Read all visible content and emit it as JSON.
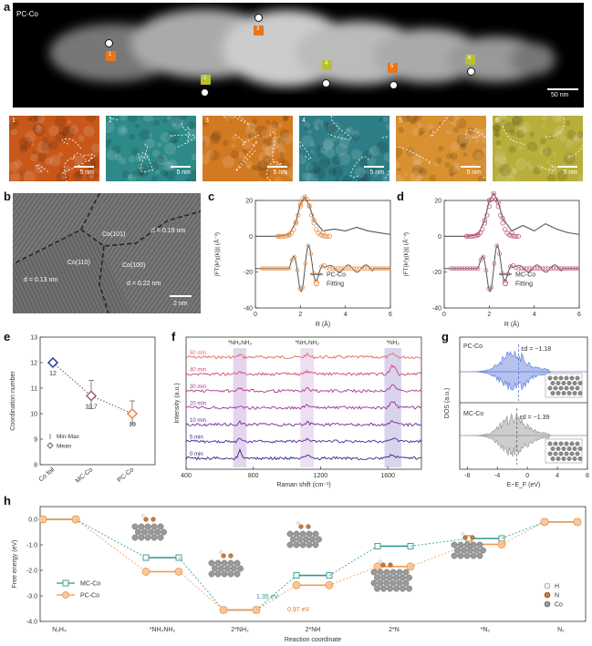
{
  "panels": {
    "a": {
      "letter": "a",
      "sample": "PC-Co",
      "scale_bar": "50 nm",
      "markers": [
        "1",
        "2",
        "3",
        "4",
        "5",
        "6"
      ],
      "tiles": [
        {
          "n": "1",
          "scale": "5 nm",
          "color": "#c8581a"
        },
        {
          "n": "2",
          "scale": "5 nm",
          "color": "#2e8a88"
        },
        {
          "n": "3",
          "scale": "5 nm",
          "color": "#d27a22"
        },
        {
          "n": "4",
          "scale": "5 nm",
          "color": "#2d7e86"
        },
        {
          "n": "5",
          "scale": "5 nm",
          "color": "#d89030"
        },
        {
          "n": "6",
          "scale": "5 nm",
          "color": "#b8ae3a"
        }
      ]
    },
    "b": {
      "letter": "b",
      "labels": [
        "Co(101)",
        "d = 0.19 nm",
        "Co(110)",
        "Co(100)",
        "d = 0.13 nm",
        "d = 0.22 nm"
      ],
      "scale_bar": "2 nm"
    },
    "c": {
      "letter": "c"
    },
    "d": {
      "letter": "d"
    },
    "e": {
      "letter": "e",
      "legend": [
        "Min-Max",
        "Mean"
      ]
    },
    "f": {
      "letter": "f",
      "peaks": [
        "*NH₂NH₂",
        "*NH₂NH₂",
        "*NH₂"
      ],
      "times": [
        "50 min",
        "40 min",
        "30 min",
        "20 min",
        "10 min",
        "5 min",
        "0 min"
      ]
    },
    "g": {
      "letter": "g",
      "samples": [
        "PC-Co",
        "MC-Co"
      ],
      "eps": [
        "εd = −1.18",
        "εd = −1.39"
      ]
    },
    "h": {
      "letter": "h",
      "legend": [
        "MC-Co",
        "PC-Co"
      ],
      "energy_labels": [
        "1.35 eV",
        "0.97 eV"
      ],
      "atoms": [
        "H",
        "N",
        "Co"
      ]
    }
  },
  "chart_data": [
    {
      "type": "line",
      "panel": "c",
      "xlabel": "R (Å)",
      "ylabel": "|FT(k²χ(k))| (Å⁻³)",
      "xlim": [
        0,
        6
      ],
      "ylim": [
        -40,
        20
      ],
      "xticks": [
        0,
        2,
        4,
        6
      ],
      "yticks": [
        20,
        0,
        -20,
        -40
      ],
      "series": [
        {
          "name": "PC-Co",
          "x": [
            0,
            0.5,
            1.0,
            1.5,
            1.8,
            2.0,
            2.2,
            2.4,
            2.6,
            3.0,
            3.5,
            4.0,
            4.5,
            5.0,
            5.5,
            6.0
          ],
          "values": [
            0,
            0,
            0,
            1,
            8,
            18,
            22,
            17,
            9,
            3,
            4,
            3,
            5,
            3,
            2,
            1
          ]
        },
        {
          "name": "Fitting",
          "x": [
            0,
            0.5,
            1.0,
            1.5,
            1.8,
            2.0,
            2.2,
            2.4,
            2.6,
            3.0,
            3.5,
            4.0,
            4.5,
            5.0,
            5.5,
            6.0
          ],
          "values": [
            0,
            0,
            0,
            1,
            8,
            18,
            22,
            17,
            9,
            2,
            1,
            0,
            0,
            0,
            0,
            0
          ]
        }
      ]
    },
    {
      "type": "line",
      "panel": "d",
      "xlabel": "R (Å)",
      "ylabel": "|FT(k²χ(k))| (Å⁻³)",
      "xlim": [
        0,
        6
      ],
      "ylim": [
        -40,
        20
      ],
      "xticks": [
        0,
        2,
        4,
        6
      ],
      "yticks": [
        20,
        0,
        -20,
        -40
      ],
      "series": [
        {
          "name": "MC-Co",
          "x": [
            0,
            0.5,
            1.0,
            1.5,
            1.8,
            2.0,
            2.2,
            2.4,
            2.6,
            3.0,
            3.5,
            4.0,
            4.5,
            5.0,
            5.5,
            6.0
          ],
          "values": [
            0,
            0,
            0,
            1,
            9,
            20,
            24,
            19,
            10,
            3,
            6,
            3,
            7,
            4,
            2,
            1
          ]
        },
        {
          "name": "Fitting",
          "x": [
            0,
            0.5,
            1.0,
            1.5,
            1.8,
            2.0,
            2.2,
            2.4,
            2.6,
            3.0,
            3.5,
            4.0,
            4.5,
            5.0,
            5.5,
            6.0
          ],
          "values": [
            0,
            0,
            0,
            1,
            9,
            20,
            24,
            19,
            10,
            2,
            1,
            0,
            0,
            0,
            0,
            0
          ]
        }
      ]
    },
    {
      "type": "scatter",
      "panel": "e",
      "ylabel": "Coordination number",
      "categories": [
        "Co foil",
        "MC-Co",
        "PC-Co"
      ],
      "values": [
        12,
        10.7,
        10
      ],
      "min": [
        12,
        10.2,
        9.6
      ],
      "max": [
        12,
        11.3,
        10.5
      ],
      "ylim": [
        8,
        13
      ],
      "yticks": [
        8,
        9,
        10,
        11,
        12,
        13
      ],
      "value_labels": [
        "12",
        "10.7",
        "10"
      ]
    },
    {
      "type": "line",
      "panel": "f",
      "xlabel": "Raman shift (cm⁻¹)",
      "ylabel": "Intensity (a.u.)",
      "xlim": [
        400,
        1800
      ],
      "xticks": [
        400,
        800,
        1200,
        1600
      ]
    },
    {
      "type": "area",
      "panel": "g",
      "xlabel": "E−E_F (eV)",
      "ylabel": "DOS (a.u.)",
      "xlim": [
        -9,
        8
      ],
      "xticks": [
        -8,
        -4,
        0,
        4,
        8
      ]
    },
    {
      "type": "line",
      "panel": "h",
      "xlabel": "Reaction coordinate",
      "ylabel": "Free energy (eV)",
      "categories": [
        "N₂H₄",
        "*NH₂NH₂",
        "2*NH₂",
        "2*NH",
        "2*N",
        "*N₂",
        "N₂"
      ],
      "ylim": [
        -4,
        0.5
      ],
      "yticks": [
        0.0,
        -1.0,
        -2.0,
        -3.0,
        -4.0
      ],
      "series": [
        {
          "name": "MC-Co",
          "values": [
            0,
            -1.5,
            -3.55,
            -2.2,
            -1.05,
            -0.75,
            -0.1
          ]
        },
        {
          "name": "PC-Co",
          "values": [
            0,
            -2.05,
            -3.55,
            -2.58,
            -1.85,
            -0.98,
            -0.1
          ]
        }
      ]
    }
  ]
}
